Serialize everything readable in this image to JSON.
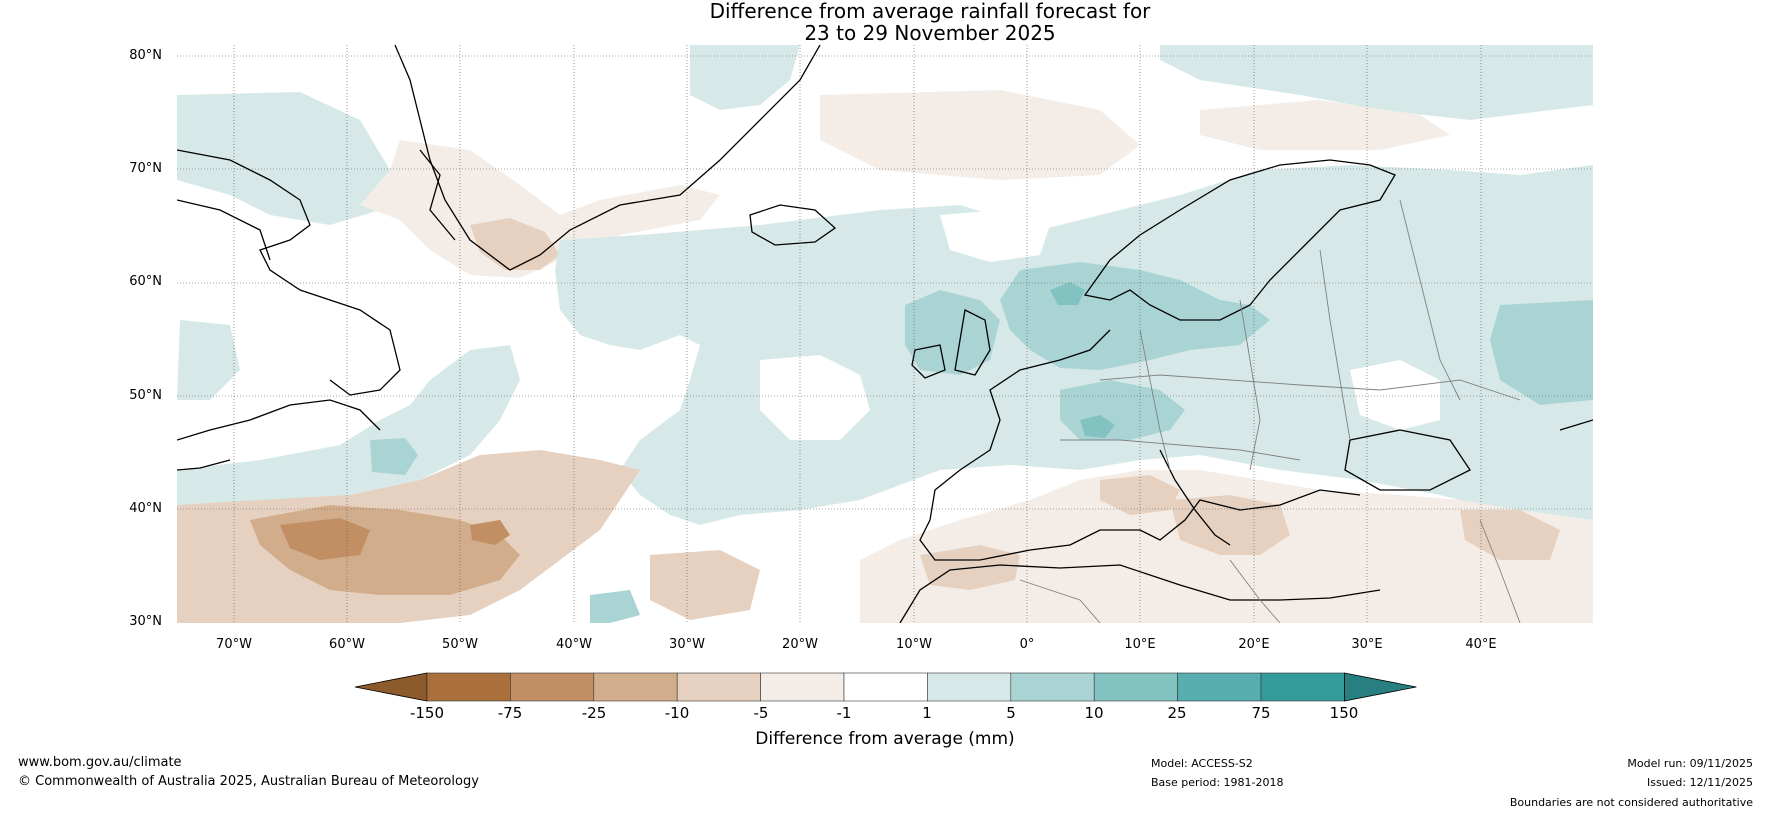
{
  "title": {
    "line1": "Difference from average rainfall forecast for",
    "line2": "23 to 29 November 2025"
  },
  "map": {
    "lat_labels": [
      "80°N",
      "70°N",
      "60°N",
      "50°N",
      "40°N",
      "30°N"
    ],
    "lon_labels": [
      "70°W",
      "60°W",
      "50°W",
      "40°W",
      "30°W",
      "20°W",
      "10°W",
      "0°",
      "10°E",
      "20°E",
      "30°E",
      "40°E"
    ],
    "extent": {
      "lon_min": -75,
      "lon_max": 50,
      "lat_min": 30,
      "lat_max": 81
    }
  },
  "colorbar": {
    "ticks": [
      "-150",
      "-75",
      "-25",
      "-10",
      "-5",
      "-1",
      "1",
      "5",
      "10",
      "25",
      "75",
      "150"
    ],
    "colors": [
      "#8c5a2b",
      "#a9703c",
      "#c18f63",
      "#d2ad8b",
      "#e6d0bf",
      "#f4ede7",
      "#ffffff",
      "#d6e9e8",
      "#aad4d4",
      "#82c3c2",
      "#58aeae",
      "#339c9b",
      "#27807f"
    ],
    "label": "Difference from average (mm)"
  },
  "footer": {
    "website": "www.bom.gov.au/climate",
    "copyright": "© Commonwealth of Australia 2025, Australian Bureau of Meteorology",
    "model": "Model: ACCESS-S2",
    "base_period": "Base period: 1981-2018",
    "model_run": "Model run: 09/11/2025",
    "issued": "Issued: 12/11/2025",
    "disclaimer": "Boundaries are not considered authoritative"
  }
}
